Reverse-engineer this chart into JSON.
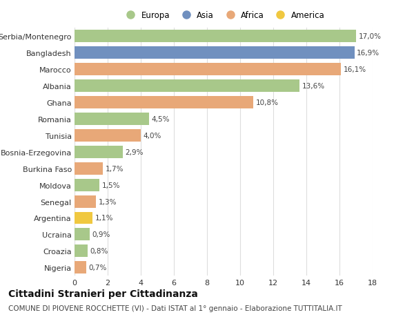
{
  "categories": [
    "Nigeria",
    "Croazia",
    "Ucraina",
    "Argentina",
    "Senegal",
    "Moldova",
    "Burkina Faso",
    "Bosnia-Erzegovina",
    "Tunisia",
    "Romania",
    "Ghana",
    "Albania",
    "Marocco",
    "Bangladesh",
    "Serbia/Montenegro"
  ],
  "values": [
    0.7,
    0.8,
    0.9,
    1.1,
    1.3,
    1.5,
    1.7,
    2.9,
    4.0,
    4.5,
    10.8,
    13.6,
    16.1,
    16.9,
    17.0
  ],
  "continents": [
    "Africa",
    "Europa",
    "Europa",
    "America",
    "Africa",
    "Europa",
    "Africa",
    "Europa",
    "Africa",
    "Europa",
    "Africa",
    "Europa",
    "Africa",
    "Asia",
    "Europa"
  ],
  "labels": [
    "0,7%",
    "0,8%",
    "0,9%",
    "1,1%",
    "1,3%",
    "1,5%",
    "1,7%",
    "2,9%",
    "4,0%",
    "4,5%",
    "10,8%",
    "13,6%",
    "16,1%",
    "16,9%",
    "17,0%"
  ],
  "continent_colors": {
    "Europa": "#a8c88a",
    "Asia": "#7090bf",
    "Africa": "#e8a878",
    "America": "#f0c840"
  },
  "legend_order": [
    "Europa",
    "Asia",
    "Africa",
    "America"
  ],
  "xlim": [
    0,
    18
  ],
  "xticks": [
    0,
    2,
    4,
    6,
    8,
    10,
    12,
    14,
    16,
    18
  ],
  "title": "Cittadini Stranieri per Cittadinanza",
  "subtitle": "COMUNE DI PIOVENE ROCCHETTE (VI) - Dati ISTAT al 1° gennaio - Elaborazione TUTTITALIA.IT",
  "background_color": "#ffffff",
  "grid_color": "#dddddd",
  "bar_height": 0.75,
  "title_fontsize": 10,
  "subtitle_fontsize": 7.5,
  "label_fontsize": 7.5,
  "tick_fontsize": 8
}
